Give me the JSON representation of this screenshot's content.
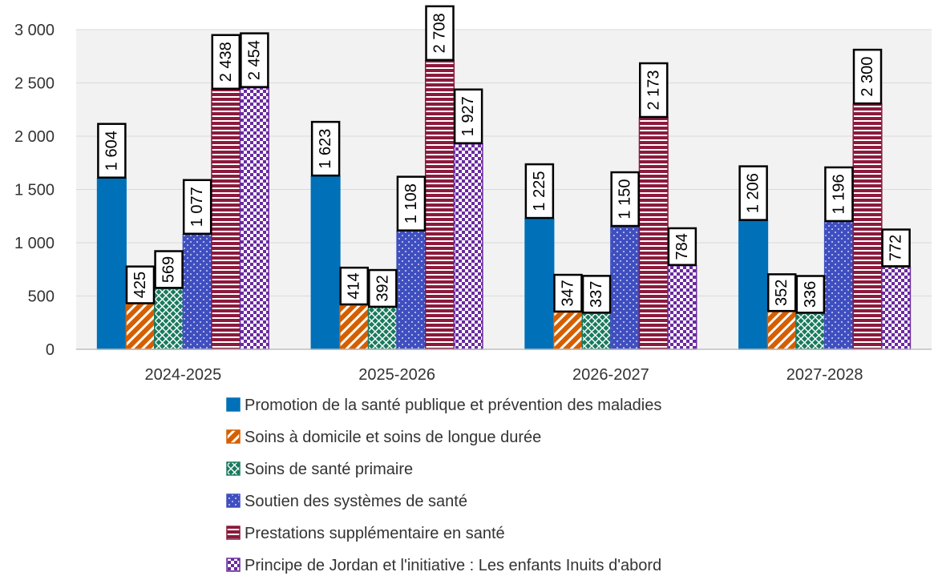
{
  "chart_data": {
    "type": "bar",
    "categories": [
      "2024-2025",
      "2025-2026",
      "2026-2027",
      "2027-2028"
    ],
    "ylim": [
      0,
      3000
    ],
    "yticks": [
      0,
      500,
      1000,
      1500,
      2000,
      2500,
      3000
    ],
    "ytick_labels": [
      "0",
      "500",
      "1 000",
      "1 500",
      "2 000",
      "2 500",
      "3 000"
    ],
    "grid": true,
    "legend_position": "bottom",
    "series": [
      {
        "name": "Promotion de la santé publique et prévention des maladies",
        "values": [
          1604,
          1623,
          1225,
          1206
        ],
        "labels": [
          "1 604",
          "1 623",
          "1 225",
          "1 206"
        ],
        "color": "#0070b8",
        "pattern": "solid"
      },
      {
        "name": "Soins à domicile et soins de longue durée",
        "values": [
          425,
          414,
          347,
          352
        ],
        "labels": [
          "425",
          "414",
          "347",
          "352"
        ],
        "color": "#d55e00",
        "pattern": "diagonal"
      },
      {
        "name": "Soins de santé primaire",
        "values": [
          569,
          392,
          337,
          336
        ],
        "labels": [
          "569",
          "392",
          "337",
          "336"
        ],
        "color": "#1a7a5e",
        "pattern": "crosshatch"
      },
      {
        "name": "Soutien des systèmes de santé",
        "values": [
          1077,
          1108,
          1150,
          1196
        ],
        "labels": [
          "1 077",
          "1 108",
          "1 150",
          "1 196"
        ],
        "color": "#3f4fc0",
        "pattern": "dots"
      },
      {
        "name": "Prestations supplémentaire en santé",
        "values": [
          2438,
          2708,
          2173,
          2300
        ],
        "labels": [
          "2 438",
          "2 708",
          "2 173",
          "2 300"
        ],
        "color": "#8b1a3c",
        "pattern": "horizontal"
      },
      {
        "name": "Principe de Jordan et l'initiative : Les enfants Inuits d'abord",
        "values": [
          2454,
          1927,
          784,
          772
        ],
        "labels": [
          "2 454",
          "1 927",
          "784",
          "772"
        ],
        "color": "#6a2aa0",
        "pattern": "checker"
      }
    ]
  }
}
